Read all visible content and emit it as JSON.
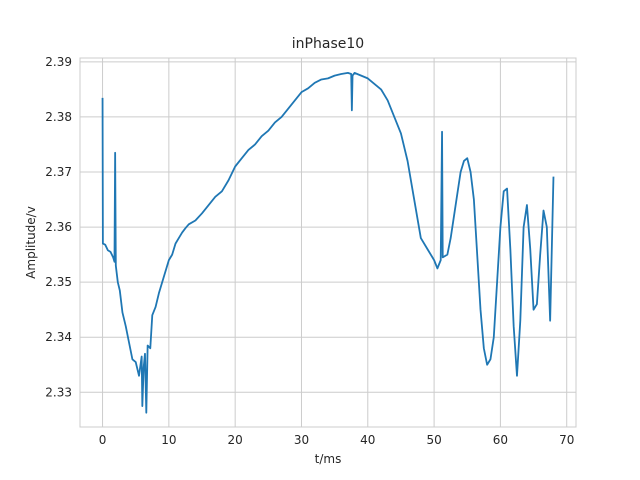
{
  "chart_data": {
    "type": "line",
    "title": "inPhase10",
    "xlabel": "t/ms",
    "ylabel": "Amplitude/v",
    "xlim": [
      -3.4,
      71.4
    ],
    "ylim": [
      2.3237,
      2.3907
    ],
    "xticks": [
      0,
      10,
      20,
      30,
      40,
      50,
      60,
      70
    ],
    "yticks": [
      2.33,
      2.34,
      2.35,
      2.36,
      2.37,
      2.38,
      2.39
    ],
    "xtick_labels": [
      "0",
      "10",
      "20",
      "30",
      "40",
      "50",
      "60",
      "70"
    ],
    "ytick_labels": [
      "2.33",
      "2.34",
      "2.35",
      "2.36",
      "2.37",
      "2.38",
      "2.39"
    ],
    "grid": true,
    "series": [
      {
        "color": "#1f77b4",
        "points": [
          [
            0.0,
            2.3833
          ],
          [
            0.05,
            2.357
          ],
          [
            0.4,
            2.3568
          ],
          [
            0.8,
            2.3558
          ],
          [
            1.2,
            2.3555
          ],
          [
            1.6,
            2.3545
          ],
          [
            1.8,
            2.3537
          ],
          [
            1.9,
            2.3735
          ],
          [
            2.0,
            2.353
          ],
          [
            2.3,
            2.35
          ],
          [
            2.6,
            2.3485
          ],
          [
            3.0,
            2.3445
          ],
          [
            3.5,
            2.342
          ],
          [
            4.0,
            2.339
          ],
          [
            4.5,
            2.336
          ],
          [
            5.0,
            2.3355
          ],
          [
            5.5,
            2.333
          ],
          [
            5.9,
            2.3365
          ],
          [
            6.0,
            2.3275
          ],
          [
            6.2,
            2.3345
          ],
          [
            6.4,
            2.337
          ],
          [
            6.6,
            2.3263
          ],
          [
            6.8,
            2.3385
          ],
          [
            7.2,
            2.338
          ],
          [
            7.5,
            2.344
          ],
          [
            8.0,
            2.3455
          ],
          [
            8.5,
            2.348
          ],
          [
            9.0,
            2.35
          ],
          [
            9.5,
            2.352
          ],
          [
            10.0,
            2.354
          ],
          [
            10.5,
            2.355
          ],
          [
            11.0,
            2.357
          ],
          [
            11.5,
            2.358
          ],
          [
            12.0,
            2.359
          ],
          [
            12.5,
            2.3598
          ],
          [
            13.0,
            2.3605
          ],
          [
            14.0,
            2.3612
          ],
          [
            15.0,
            2.3625
          ],
          [
            16.0,
            2.364
          ],
          [
            17.0,
            2.3655
          ],
          [
            18.0,
            2.3665
          ],
          [
            19.0,
            2.3685
          ],
          [
            20.0,
            2.371
          ],
          [
            21.0,
            2.3725
          ],
          [
            22.0,
            2.374
          ],
          [
            23.0,
            2.375
          ],
          [
            24.0,
            2.3765
          ],
          [
            25.0,
            2.3775
          ],
          [
            26.0,
            2.379
          ],
          [
            27.0,
            2.38
          ],
          [
            28.0,
            2.3815
          ],
          [
            29.0,
            2.383
          ],
          [
            30.0,
            2.3845
          ],
          [
            31.0,
            2.3852
          ],
          [
            32.0,
            2.3862
          ],
          [
            33.0,
            2.3868
          ],
          [
            34.0,
            2.387
          ],
          [
            35.0,
            2.3875
          ],
          [
            36.0,
            2.3878
          ],
          [
            37.0,
            2.388
          ],
          [
            37.5,
            2.3878
          ],
          [
            37.6,
            2.3812
          ],
          [
            37.7,
            2.3875
          ],
          [
            38.0,
            2.388
          ],
          [
            39.0,
            2.3875
          ],
          [
            40.0,
            2.387
          ],
          [
            41.0,
            2.386
          ],
          [
            42.0,
            2.385
          ],
          [
            43.0,
            2.383
          ],
          [
            44.0,
            2.38
          ],
          [
            45.0,
            2.377
          ],
          [
            46.0,
            2.372
          ],
          [
            47.0,
            2.365
          ],
          [
            48.0,
            2.358
          ],
          [
            49.0,
            2.356
          ],
          [
            50.0,
            2.354
          ],
          [
            50.5,
            2.3525
          ],
          [
            51.0,
            2.354
          ],
          [
            51.2,
            2.3773
          ],
          [
            51.3,
            2.3545
          ],
          [
            52.0,
            2.355
          ],
          [
            52.5,
            2.358
          ],
          [
            53.0,
            2.362
          ],
          [
            53.5,
            2.366
          ],
          [
            54.0,
            2.37
          ],
          [
            54.5,
            2.372
          ],
          [
            55.0,
            2.3725
          ],
          [
            55.5,
            2.37
          ],
          [
            56.0,
            2.365
          ],
          [
            56.5,
            2.355
          ],
          [
            57.0,
            2.345
          ],
          [
            57.5,
            2.338
          ],
          [
            58.0,
            2.335
          ],
          [
            58.5,
            2.336
          ],
          [
            59.0,
            2.34
          ],
          [
            59.5,
            2.35
          ],
          [
            60.0,
            2.36
          ],
          [
            60.5,
            2.3665
          ],
          [
            61.0,
            2.367
          ],
          [
            61.5,
            2.356
          ],
          [
            62.0,
            2.342
          ],
          [
            62.5,
            2.333
          ],
          [
            63.0,
            2.343
          ],
          [
            63.5,
            2.36
          ],
          [
            64.0,
            2.364
          ],
          [
            64.5,
            2.356
          ],
          [
            65.0,
            2.345
          ],
          [
            65.5,
            2.346
          ],
          [
            66.0,
            2.355
          ],
          [
            66.5,
            2.363
          ],
          [
            67.0,
            2.36
          ],
          [
            67.5,
            2.343
          ],
          [
            68.0,
            2.369
          ]
        ]
      }
    ]
  }
}
